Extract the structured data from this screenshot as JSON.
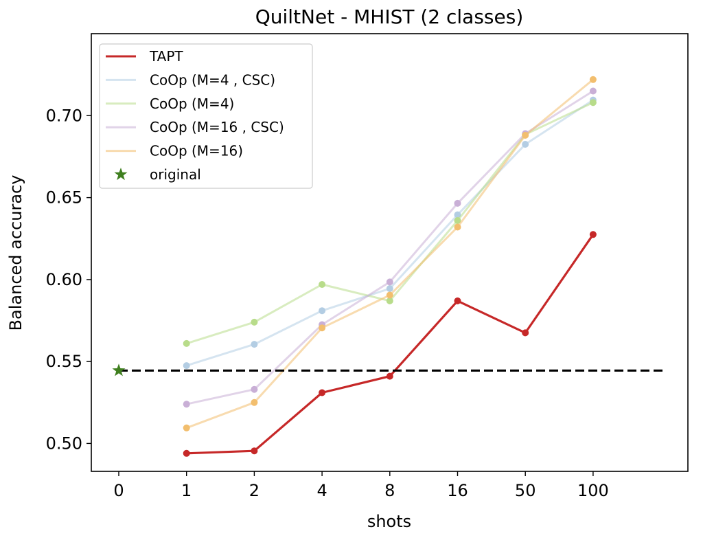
{
  "chart_data": {
    "type": "line",
    "title": "QuiltNet - MHIST (2 classes)",
    "xlabel": "shots",
    "ylabel": "Balanced accuracy",
    "categories": [
      "0",
      "1",
      "2",
      "4",
      "8",
      "16",
      "50",
      "100"
    ],
    "ylim": [
      0.483,
      0.75
    ],
    "yticks": [
      "0.50",
      "0.55",
      "0.60",
      "0.65",
      "0.70"
    ],
    "series": [
      {
        "name": "TAPT",
        "color": "#c62828",
        "values": [
          null,
          0.494,
          0.4955,
          0.531,
          0.541,
          0.587,
          0.5675,
          0.6275
        ]
      },
      {
        "name": "CoOp (M=4 , CSC)",
        "color": "#b3cde3",
        "values": [
          null,
          0.5475,
          0.5605,
          0.581,
          0.5945,
          0.6395,
          0.6825,
          0.7095
        ]
      },
      {
        "name": "CoOp (M=4)",
        "color": "#b8dc8a",
        "values": [
          null,
          0.561,
          0.574,
          0.597,
          0.587,
          0.636,
          0.6885,
          0.708
        ]
      },
      {
        "name": "CoOp (M=16 , CSC)",
        "color": "#c9afd6",
        "values": [
          null,
          0.524,
          0.533,
          0.5725,
          0.5985,
          0.6465,
          0.689,
          0.715
        ]
      },
      {
        "name": "CoOp (M=16)",
        "color": "#f2be6e",
        "values": [
          null,
          0.5095,
          0.525,
          0.5705,
          0.5905,
          0.632,
          0.688,
          0.722
        ]
      }
    ],
    "original": {
      "name": "original",
      "x": "0",
      "value": 0.5445,
      "color": "#3f7f1f"
    },
    "baseline": {
      "value": 0.5445,
      "style": "dashed",
      "color": "#000000"
    },
    "legend": "top-left",
    "grid": false
  }
}
